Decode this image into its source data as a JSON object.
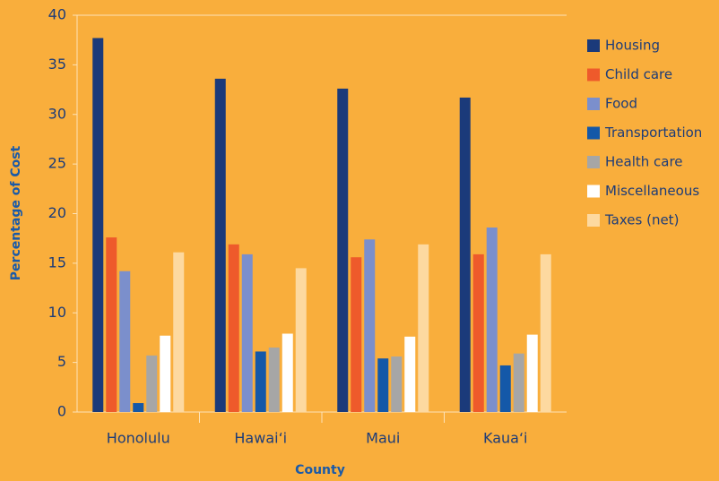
{
  "chart_data": {
    "type": "bar",
    "x_label": "County",
    "y_label": "Percentage of Cost",
    "categories": [
      "Honolulu",
      "Hawai‘i",
      "Maui",
      "Kaua‘i"
    ],
    "series": [
      {
        "name": "Housing",
        "color": "#1b3a7a",
        "values": [
          37.7,
          33.6,
          32.6,
          31.7
        ]
      },
      {
        "name": "Child care",
        "color": "#ee5a2b",
        "values": [
          17.6,
          16.9,
          15.6,
          15.9
        ]
      },
      {
        "name": "Food",
        "color": "#7b8fcc",
        "values": [
          14.2,
          15.9,
          17.4,
          18.6
        ]
      },
      {
        "name": "Transportation",
        "color": "#1458a8",
        "values": [
          0.9,
          6.1,
          5.4,
          4.7
        ]
      },
      {
        "name": "Health care",
        "color": "#a6a6a6",
        "values": [
          5.7,
          6.5,
          5.6,
          5.9
        ]
      },
      {
        "name": "Miscellaneous",
        "color": "#ffffff",
        "values": [
          7.7,
          7.9,
          7.6,
          7.8
        ]
      },
      {
        "name": "Taxes (net)",
        "color": "#fdd9a0",
        "values": [
          16.1,
          14.5,
          16.9,
          15.9
        ]
      }
    ],
    "ylim": [
      0,
      40
    ],
    "yticks": [
      0,
      5,
      10,
      15,
      20,
      25,
      30,
      35,
      40
    ],
    "legend": "right"
  }
}
